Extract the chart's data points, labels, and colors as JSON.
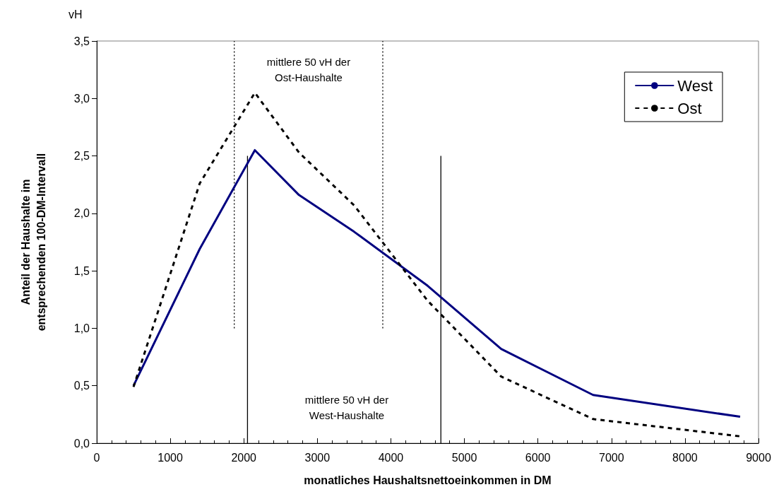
{
  "chart_data": {
    "type": "line",
    "xlabel": "monatliches Haushaltsnettoeinkommen in DM",
    "ylabel": "Anteil der Haushalte im\nentsprechenden 100-DM-Intervall",
    "annotations": [
      "vH",
      "mittlere 50 vH der\nOst-Haushalte",
      "mittlere 50 vH der\nWest-Haushalte"
    ],
    "x": [
      500,
      1400,
      2150,
      2750,
      3500,
      4500,
      5500,
      6750,
      8750
    ],
    "series": [
      {
        "name": "West",
        "color": "#000080",
        "line_style": "solid",
        "values": [
          0.5,
          1.69,
          2.55,
          2.16,
          1.84,
          1.37,
          0.82,
          0.42,
          0.23
        ]
      },
      {
        "name": "Ost",
        "color": "#000000",
        "line_style": "dashed",
        "values": [
          0.49,
          2.26,
          3.05,
          2.53,
          2.07,
          1.24,
          0.58,
          0.21,
          0.06
        ]
      },
      {
        "color": "#000000",
        "line_style": "dotted",
        "x": [
          1870,
          1870
        ],
        "values": [
          1.0,
          3.5
        ]
      },
      {
        "color": "#000000",
        "line_style": "dotted",
        "x": [
          3890,
          3890
        ],
        "values": [
          1.0,
          3.5
        ]
      },
      {
        "color": "#000000",
        "line_style": "solid",
        "x": [
          2050,
          2050
        ],
        "values": [
          0,
          2.5
        ]
      },
      {
        "color": "#000000",
        "line_style": "solid",
        "x": [
          4680,
          4680
        ],
        "values": [
          0,
          2.5
        ]
      }
    ],
    "xlim": [
      0,
      9000
    ],
    "xticks": [
      0,
      1000,
      2000,
      3000,
      4000,
      5000,
      6000,
      7000,
      8000,
      9000
    ],
    "ylim": [
      0,
      3.5
    ],
    "yticks": [
      {
        "value": 0,
        "label": "0,0"
      },
      {
        "value": 0.5,
        "label": "0,5"
      },
      {
        "value": 1,
        "label": "1,0"
      },
      {
        "value": 1.5,
        "label": "1,5"
      },
      {
        "value": 2,
        "label": "2,0"
      },
      {
        "value": 2.5,
        "label": "2,5"
      },
      {
        "value": 3,
        "label": "3,0"
      },
      {
        "value": 3.5,
        "label": "3,5"
      }
    ],
    "grid": false,
    "legend": "top right",
    "marker": "none"
  }
}
